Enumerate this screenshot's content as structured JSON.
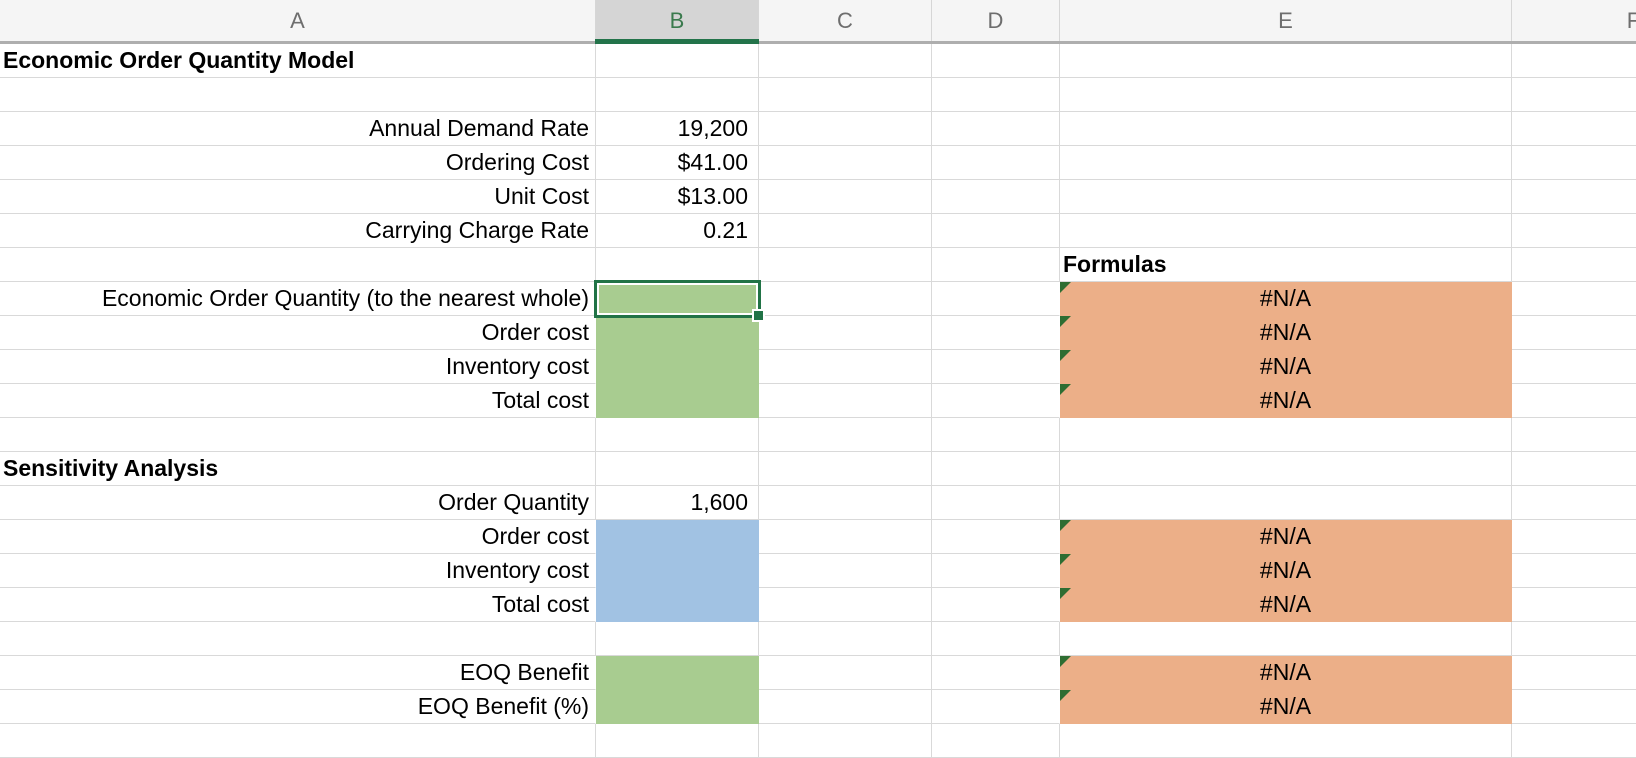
{
  "sheet": {
    "column_headers": [
      "A",
      "B",
      "C",
      "D",
      "E",
      "F"
    ],
    "selected_column": "B",
    "title": "Economic Order Quantity Model",
    "inputs": [
      {
        "label": "Annual Demand Rate",
        "value": "19,200"
      },
      {
        "label": "Ordering Cost",
        "value": "$41.00"
      },
      {
        "label": "Unit Cost",
        "value": "$13.00"
      },
      {
        "label": "Carrying Charge Rate",
        "value": "0.21"
      }
    ],
    "formulas_label": "Formulas",
    "eoq": {
      "rows": [
        {
          "label": "Economic Order Quantity (to the nearest whole)",
          "value": "",
          "formula_result": "#N/A"
        },
        {
          "label": "Order cost",
          "value": "",
          "formula_result": "#N/A"
        },
        {
          "label": "Inventory cost",
          "value": "",
          "formula_result": "#N/A"
        },
        {
          "label": "Total cost",
          "value": "",
          "formula_result": "#N/A"
        }
      ]
    },
    "sensitivity": {
      "title": "Sensitivity Analysis",
      "order_quantity": {
        "label": "Order Quantity",
        "value": "1,600"
      },
      "rows": [
        {
          "label": "Order cost",
          "value": "",
          "formula_result": "#N/A"
        },
        {
          "label": "Inventory cost",
          "value": "",
          "formula_result": "#N/A"
        },
        {
          "label": "Total cost",
          "value": "",
          "formula_result": "#N/A"
        }
      ]
    },
    "benefit": {
      "rows": [
        {
          "label": "EOQ Benefit",
          "value": "",
          "formula_result": "#N/A"
        },
        {
          "label": "EOQ Benefit (%)",
          "value": "",
          "formula_result": "#N/A"
        }
      ]
    },
    "colors": {
      "input_fill_green": "#a8cc90",
      "sensitivity_fill_blue": "#a1c2e3",
      "formula_fill_orange": "#ecaf88",
      "selection_green": "#217346",
      "error_indicator_green": "#2e6d32"
    }
  }
}
